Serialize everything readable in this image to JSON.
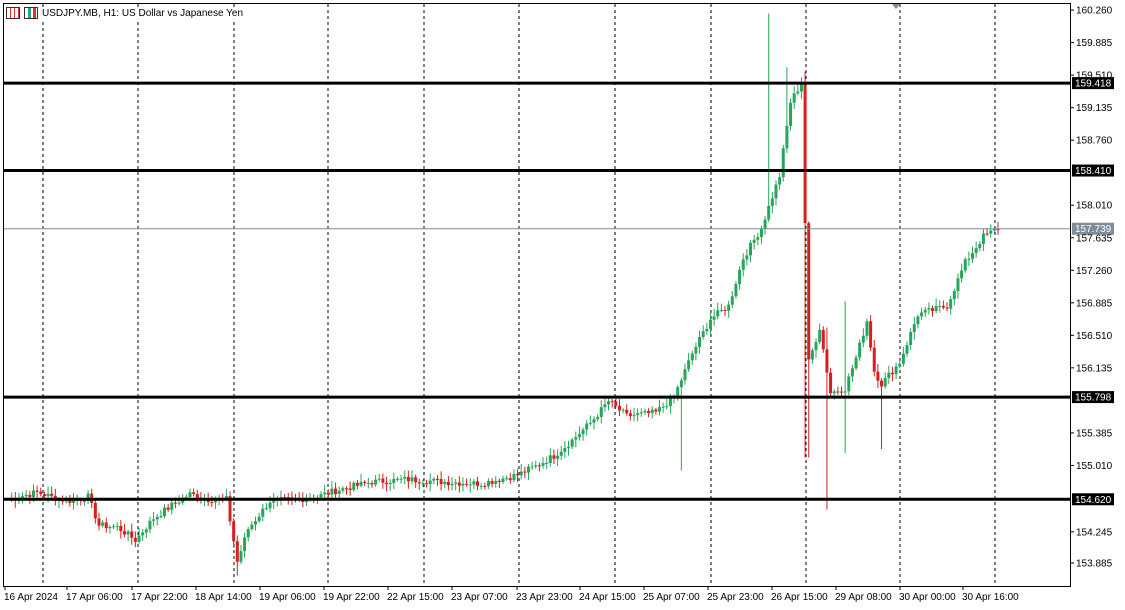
{
  "window": {
    "symbol_title": "USDJPY.MB, H1:  US Dollar vs Japanese Yen"
  },
  "colors": {
    "bull": "#26a65b",
    "bear": "#d81e1e",
    "wick_bull": "#26a65b",
    "wick_bear": "#d81e1e",
    "level_line": "#000000",
    "current_price_line": "#7f8c9a",
    "current_price_tag": "#7f8c9a",
    "grid": "#000000"
  },
  "chart_data": {
    "type": "candlestick",
    "title": "USDJPY.MB, H1:  US Dollar vs Japanese Yen",
    "ylim": [
      153.62,
      160.33
    ],
    "y_ticks": [
      "160.260",
      "159.885",
      "159.510",
      "159.135",
      "158.760",
      "158.010",
      "157.635",
      "157.260",
      "156.885",
      "156.510",
      "156.135",
      "155.385",
      "155.010",
      "154.245",
      "153.885"
    ],
    "x_ticks": [
      "16 Apr 2024",
      "17 Apr 06:00",
      "17 Apr 22:00",
      "18 Apr 14:00",
      "19 Apr 06:00",
      "19 Apr 22:00",
      "22 Apr 15:00",
      "23 Apr 07:00",
      "23 Apr 23:00",
      "24 Apr 15:00",
      "25 Apr 07:00",
      "25 Apr 23:00",
      "26 Apr 15:00",
      "29 Apr 08:00",
      "30 Apr 00:00",
      "30 Apr 16:00"
    ],
    "levels": [
      {
        "value": 159.418,
        "label": "159.418"
      },
      {
        "value": 158.41,
        "label": "158.410"
      },
      {
        "value": 155.798,
        "label": "155.798"
      },
      {
        "value": 154.62,
        "label": "154.620"
      }
    ],
    "current_price": {
      "value": 157.739,
      "label": "157.739"
    },
    "grid": "vertical dashed",
    "anchors": [
      [
        0,
        154.62
      ],
      [
        8,
        154.7
      ],
      [
        14,
        154.62
      ],
      [
        18,
        154.6
      ],
      [
        22,
        154.65
      ],
      [
        25,
        154.32
      ],
      [
        30,
        154.3
      ],
      [
        35,
        154.15
      ],
      [
        40,
        154.4
      ],
      [
        45,
        154.55
      ],
      [
        50,
        154.68
      ],
      [
        55,
        154.62
      ],
      [
        60,
        154.62
      ],
      [
        63,
        153.9
      ],
      [
        66,
        154.28
      ],
      [
        72,
        154.6
      ],
      [
        80,
        154.62
      ],
      [
        85,
        154.65
      ],
      [
        90,
        154.72
      ],
      [
        100,
        154.82
      ],
      [
        110,
        154.85
      ],
      [
        120,
        154.82
      ],
      [
        130,
        154.8
      ],
      [
        140,
        154.9
      ],
      [
        145,
        155.0
      ],
      [
        150,
        155.12
      ],
      [
        155,
        155.3
      ],
      [
        160,
        155.5
      ],
      [
        165,
        155.75
      ],
      [
        170,
        155.58
      ],
      [
        178,
        155.62
      ],
      [
        183,
        155.8
      ],
      [
        188,
        156.3
      ],
      [
        193,
        156.7
      ],
      [
        198,
        156.85
      ],
      [
        202,
        157.4
      ],
      [
        207,
        157.75
      ],
      [
        212,
        158.35
      ],
      [
        215,
        159.2
      ],
      [
        218,
        159.42
      ],
      [
        220,
        156.2
      ],
      [
        223,
        156.6
      ],
      [
        226,
        155.85
      ],
      [
        230,
        155.9
      ],
      [
        233,
        156.25
      ],
      [
        236,
        156.68
      ],
      [
        238,
        156.1
      ],
      [
        240,
        155.95
      ],
      [
        245,
        156.2
      ],
      [
        250,
        156.75
      ],
      [
        258,
        156.85
      ],
      [
        263,
        157.35
      ],
      [
        268,
        157.65
      ],
      [
        272,
        157.74
      ]
    ]
  }
}
